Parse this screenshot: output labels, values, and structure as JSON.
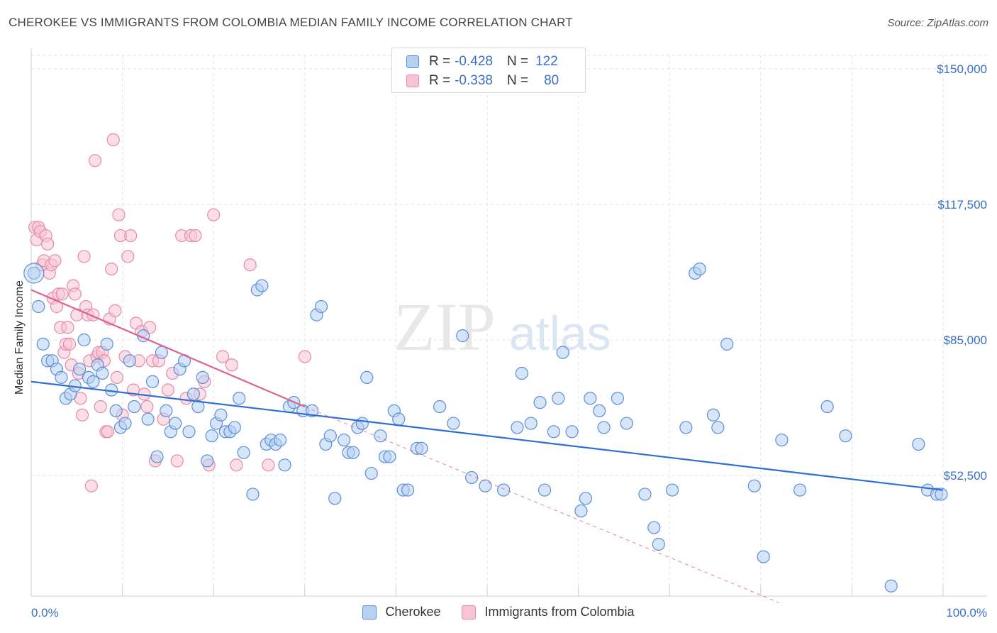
{
  "header": {
    "title": "CHEROKEE VS IMMIGRANTS FROM COLOMBIA MEDIAN FAMILY INCOME CORRELATION CHART",
    "source": "Source: ZipAtlas.com"
  },
  "watermark": {
    "zip": "ZIP",
    "atlas": "atlas"
  },
  "legend": {
    "rows": [
      {
        "r_label": "R =",
        "r_value": "-0.428",
        "n_label": "N =",
        "n_value": "122"
      },
      {
        "r_label": "R =",
        "r_value": "-0.338",
        "n_label": "N =",
        "n_value": "80"
      }
    ],
    "bottom": [
      "Cherokee",
      "Immigrants from Colombia"
    ]
  },
  "colors": {
    "cherokee_fill": "#b7d0f2",
    "cherokee_stroke": "#5a8fd8",
    "cherokee_line": "#2f6fd1",
    "colombia_fill": "#f8c4d4",
    "colombia_stroke": "#e889a8",
    "colombia_line": "#e0628e",
    "grid": "#e3e3e3",
    "tick_text": "#3a6fc9"
  },
  "chart_data": {
    "type": "scatter",
    "title": "CHEROKEE VS IMMIGRANTS FROM COLOMBIA MEDIAN FAMILY INCOME CORRELATION CHART",
    "xlabel": "",
    "ylabel": "Median Family Income",
    "xlim": [
      0,
      100
    ],
    "ylim": [
      22000,
      153000
    ],
    "x_tick_labels": [
      "0.0%",
      "100.0%"
    ],
    "y_ticks": [
      52500,
      85000,
      117500,
      150000
    ],
    "y_tick_labels": [
      "$52,500",
      "$85,000",
      "$117,500",
      "$150,000"
    ],
    "grid": true,
    "legend_position": "top-center",
    "series": [
      {
        "name": "Cherokee",
        "trend": {
          "x0": 0,
          "y0": 75000,
          "x1": 100,
          "y1": 49000
        },
        "points": [
          [
            0.3,
            101000
          ],
          [
            0.8,
            93000
          ],
          [
            1.3,
            84000
          ],
          [
            1.8,
            80000
          ],
          [
            2.3,
            80000
          ],
          [
            2.8,
            78000
          ],
          [
            3.3,
            76000
          ],
          [
            3.8,
            71000
          ],
          [
            4.3,
            72000
          ],
          [
            4.8,
            74000
          ],
          [
            5.3,
            78000
          ],
          [
            5.8,
            85000
          ],
          [
            6.3,
            76000
          ],
          [
            6.8,
            75000
          ],
          [
            7.3,
            79000
          ],
          [
            7.8,
            77000
          ],
          [
            8.3,
            84000
          ],
          [
            8.8,
            73000
          ],
          [
            9.3,
            68000
          ],
          [
            9.8,
            64000
          ],
          [
            10.3,
            65000
          ],
          [
            10.8,
            80000
          ],
          [
            11.3,
            69000
          ],
          [
            12.3,
            86000
          ],
          [
            12.8,
            66000
          ],
          [
            13.3,
            75000
          ],
          [
            13.8,
            57000
          ],
          [
            14.3,
            82000
          ],
          [
            14.8,
            68000
          ],
          [
            15.3,
            63000
          ],
          [
            15.8,
            65000
          ],
          [
            16.3,
            78000
          ],
          [
            16.8,
            80000
          ],
          [
            17.3,
            63000
          ],
          [
            17.8,
            72000
          ],
          [
            18.3,
            69000
          ],
          [
            18.8,
            76000
          ],
          [
            19.3,
            56000
          ],
          [
            19.8,
            62000
          ],
          [
            20.3,
            65000
          ],
          [
            20.8,
            67000
          ],
          [
            21.3,
            63000
          ],
          [
            21.8,
            63000
          ],
          [
            22.3,
            64000
          ],
          [
            22.8,
            71000
          ],
          [
            23.3,
            58000
          ],
          [
            24.3,
            48000
          ],
          [
            24.8,
            97000
          ],
          [
            25.3,
            98000
          ],
          [
            25.8,
            60000
          ],
          [
            26.3,
            61000
          ],
          [
            26.8,
            60000
          ],
          [
            27.3,
            61000
          ],
          [
            27.8,
            55000
          ],
          [
            28.3,
            69000
          ],
          [
            28.8,
            70000
          ],
          [
            29.8,
            68000
          ],
          [
            30.8,
            68000
          ],
          [
            31.3,
            91000
          ],
          [
            31.8,
            93000
          ],
          [
            32.3,
            60000
          ],
          [
            32.8,
            62000
          ],
          [
            33.3,
            47000
          ],
          [
            34.3,
            61000
          ],
          [
            34.8,
            58000
          ],
          [
            35.3,
            58000
          ],
          [
            35.8,
            64000
          ],
          [
            36.3,
            65000
          ],
          [
            36.8,
            76000
          ],
          [
            37.3,
            53000
          ],
          [
            38.3,
            62000
          ],
          [
            38.8,
            57000
          ],
          [
            39.3,
            57000
          ],
          [
            39.8,
            68000
          ],
          [
            40.3,
            66000
          ],
          [
            40.8,
            49000
          ],
          [
            41.3,
            49000
          ],
          [
            42.3,
            59000
          ],
          [
            42.8,
            59000
          ],
          [
            44.8,
            69000
          ],
          [
            46.3,
            65000
          ],
          [
            47.3,
            86000
          ],
          [
            48.3,
            52000
          ],
          [
            49.8,
            50000
          ],
          [
            51.8,
            49000
          ],
          [
            53.3,
            64000
          ],
          [
            53.8,
            77000
          ],
          [
            54.8,
            65000
          ],
          [
            55.8,
            70000
          ],
          [
            56.3,
            49000
          ],
          [
            57.3,
            63000
          ],
          [
            57.8,
            71000
          ],
          [
            58.3,
            82000
          ],
          [
            59.3,
            63000
          ],
          [
            60.3,
            44000
          ],
          [
            60.8,
            47000
          ],
          [
            61.3,
            71000
          ],
          [
            62.3,
            68000
          ],
          [
            62.8,
            64000
          ],
          [
            64.3,
            71000
          ],
          [
            65.3,
            65000
          ],
          [
            67.3,
            48000
          ],
          [
            68.3,
            40000
          ],
          [
            68.8,
            36000
          ],
          [
            70.3,
            49000
          ],
          [
            71.8,
            64000
          ],
          [
            72.8,
            101000
          ],
          [
            73.3,
            102000
          ],
          [
            74.8,
            67000
          ],
          [
            75.3,
            64000
          ],
          [
            76.3,
            84000
          ],
          [
            79.3,
            50000
          ],
          [
            80.3,
            33000
          ],
          [
            82.3,
            61000
          ],
          [
            84.3,
            49000
          ],
          [
            87.3,
            69000
          ],
          [
            89.3,
            62000
          ],
          [
            94.3,
            26000
          ],
          [
            97.3,
            60000
          ],
          [
            98.3,
            49000
          ],
          [
            99.3,
            48000
          ],
          [
            99.8,
            48000
          ]
        ]
      },
      {
        "name": "Immigrants from Colombia",
        "trend": {
          "x0": 0,
          "y0": 97000,
          "x1": 30,
          "y1": 69000
        },
        "trend_extension": {
          "x0": 30,
          "y0": 69000,
          "x1": 82,
          "y1": 22000
        },
        "points": [
          [
            0.4,
            112000
          ],
          [
            0.6,
            109000
          ],
          [
            0.8,
            112000
          ],
          [
            1.0,
            111000
          ],
          [
            1.2,
            103000
          ],
          [
            1.4,
            104000
          ],
          [
            1.6,
            110000
          ],
          [
            1.8,
            108000
          ],
          [
            2.0,
            101000
          ],
          [
            2.2,
            103000
          ],
          [
            2.4,
            95000
          ],
          [
            2.6,
            104000
          ],
          [
            2.8,
            93000
          ],
          [
            3.0,
            96000
          ],
          [
            3.2,
            88000
          ],
          [
            3.4,
            96000
          ],
          [
            3.6,
            82000
          ],
          [
            3.8,
            84000
          ],
          [
            4.0,
            88000
          ],
          [
            4.2,
            84000
          ],
          [
            4.4,
            79000
          ],
          [
            4.6,
            98000
          ],
          [
            4.8,
            96000
          ],
          [
            5.0,
            91000
          ],
          [
            5.2,
            77000
          ],
          [
            5.4,
            71000
          ],
          [
            5.6,
            67000
          ],
          [
            5.8,
            105000
          ],
          [
            6.0,
            93000
          ],
          [
            6.2,
            91000
          ],
          [
            6.4,
            80000
          ],
          [
            6.6,
            50000
          ],
          [
            6.8,
            91000
          ],
          [
            7.0,
            128000
          ],
          [
            7.2,
            81000
          ],
          [
            7.4,
            82000
          ],
          [
            7.6,
            69000
          ],
          [
            7.8,
            82000
          ],
          [
            8.0,
            80000
          ],
          [
            8.2,
            63000
          ],
          [
            8.4,
            63000
          ],
          [
            8.6,
            90000
          ],
          [
            8.8,
            102000
          ],
          [
            9.0,
            133000
          ],
          [
            9.2,
            92000
          ],
          [
            9.4,
            76000
          ],
          [
            9.6,
            115000
          ],
          [
            9.8,
            110000
          ],
          [
            10.0,
            67000
          ],
          [
            10.3,
            81000
          ],
          [
            10.6,
            105000
          ],
          [
            10.9,
            110000
          ],
          [
            11.2,
            73000
          ],
          [
            11.5,
            89000
          ],
          [
            11.8,
            80000
          ],
          [
            12.1,
            87000
          ],
          [
            12.4,
            72000
          ],
          [
            12.7,
            69000
          ],
          [
            13.0,
            88000
          ],
          [
            13.3,
            80000
          ],
          [
            13.6,
            56000
          ],
          [
            14.0,
            80000
          ],
          [
            14.5,
            66000
          ],
          [
            15.0,
            73000
          ],
          [
            15.5,
            77000
          ],
          [
            16.0,
            56000
          ],
          [
            16.5,
            110000
          ],
          [
            17.0,
            71000
          ],
          [
            17.5,
            110000
          ],
          [
            18.0,
            110000
          ],
          [
            18.5,
            72000
          ],
          [
            19.0,
            75000
          ],
          [
            19.5,
            55000
          ],
          [
            20.0,
            115000
          ],
          [
            21.0,
            81000
          ],
          [
            22.0,
            79000
          ],
          [
            22.5,
            55000
          ],
          [
            24.0,
            103000
          ],
          [
            26.0,
            55000
          ],
          [
            30.0,
            81000
          ]
        ]
      }
    ]
  }
}
